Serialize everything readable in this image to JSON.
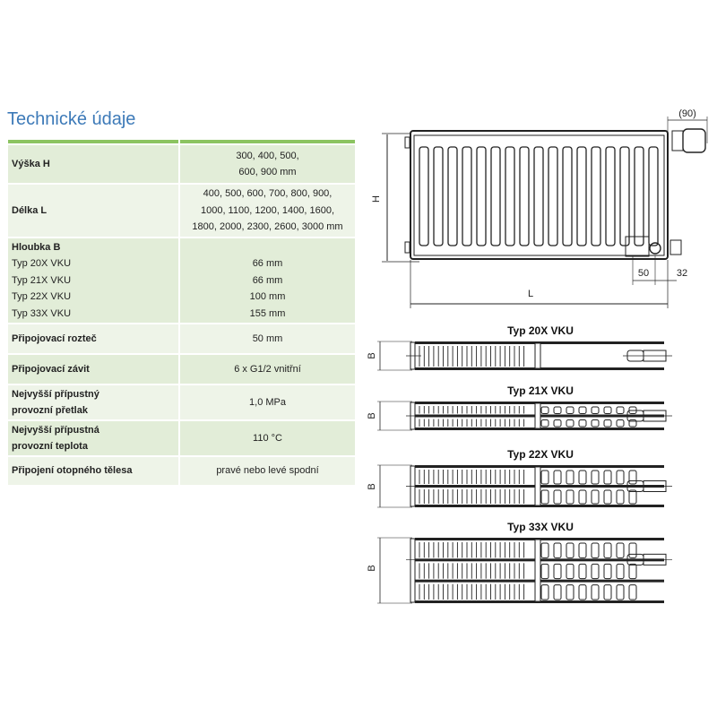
{
  "title": "Technické údaje",
  "table": {
    "rows": [
      {
        "label": "Výška H",
        "value_lines": [
          "300, 400, 500,",
          "600, 900 mm"
        ]
      },
      {
        "label": "Délka L",
        "value_lines": [
          "400, 500, 600, 700, 800, 900,",
          "1000, 1100, 1200, 1400, 1600,",
          "1800, 2000, 2300, 2600, 3000 mm"
        ]
      },
      {
        "label": "Hloubka B",
        "sub": [
          {
            "label": "Typ 20X VKU",
            "value": "66 mm"
          },
          {
            "label": "Typ 21X VKU",
            "value": "66 mm"
          },
          {
            "label": "Typ 22X VKU",
            "value": "100 mm"
          },
          {
            "label": "Typ 33X VKU",
            "value": "155 mm"
          }
        ]
      },
      {
        "label": "Připojovací rozteč",
        "value": "50 mm"
      },
      {
        "label": "Připojovací závit",
        "value": "6 x G1/2 vnitřní"
      },
      {
        "label_lines": [
          "Nejvyšší přípustný",
          "provozní přetlak"
        ],
        "value": "1,0 MPa"
      },
      {
        "label_lines": [
          "Nejvyšší přípustná",
          "provozní teplota"
        ],
        "value": "110 °C"
      },
      {
        "label": "Připojení otopného tělesa",
        "value": "pravé nebo levé spodní"
      }
    ]
  },
  "drawing": {
    "front": {
      "dim_h": "H",
      "dim_l": "L",
      "dim_valve": "(90)",
      "dim_spacing": "50",
      "dim_offset": "32"
    },
    "sections": [
      {
        "type": "Typ 20X VKU",
        "dim": "B",
        "panels": 1,
        "convectors": 0
      },
      {
        "type": "Typ 21X VKU",
        "dim": "B",
        "panels": 2,
        "convectors": 1
      },
      {
        "type": "Typ 22X VKU",
        "dim": "B",
        "panels": 2,
        "convectors": 2
      },
      {
        "type": "Typ 33X VKU",
        "dim": "B",
        "panels": 3,
        "convectors": 3
      }
    ]
  },
  "colors": {
    "title": "#3d7ab8",
    "accent_line": "#8cc461",
    "row_dark": "#e2edd8",
    "row_light": "#eef4e8"
  }
}
